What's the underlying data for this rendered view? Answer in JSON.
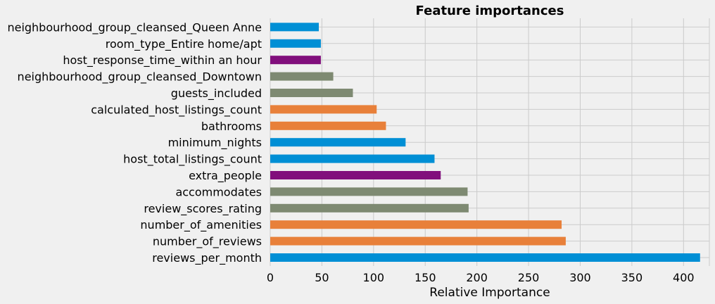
{
  "chart_data": {
    "type": "bar",
    "orientation": "horizontal",
    "title": "Feature importances",
    "xlabel": "Relative Importance",
    "ylabel": "",
    "xlim": [
      0,
      425
    ],
    "xticks": [
      0,
      50,
      100,
      150,
      200,
      250,
      300,
      350,
      400
    ],
    "grid": true,
    "categories": [
      "reviews_per_month",
      "number_of_reviews",
      "number_of_amenities",
      "review_scores_rating",
      "accommodates",
      "extra_people",
      "host_total_listings_count",
      "minimum_nights",
      "bathrooms",
      "calculated_host_listings_count",
      "guests_included",
      "neighbourhood_group_cleansed_Downtown",
      "host_response_time_within an hour",
      "room_type_Entire home/apt",
      "neighbourhood_group_cleansed_Queen Anne"
    ],
    "values": [
      416,
      286,
      282,
      192,
      191,
      165,
      159,
      131,
      112,
      103,
      80,
      61,
      49,
      49,
      47
    ],
    "bar_colors": [
      "#008fd5",
      "#fc4f30",
      "#e5ae38",
      "#6d904f",
      "#8b8b8b",
      "#810f7c",
      "#008fd5",
      "#008fd5",
      "#fc4f30",
      "#fc4f30",
      "#8b8b8b",
      "#8b8b8b",
      "#810f7c",
      "#008fd5",
      "#008fd5"
    ],
    "bar_fills": [
      "#008fd5",
      "#e8803a",
      "#e8803a",
      "#7e8a72",
      "#7e8a72",
      "#810f7c",
      "#008fd5",
      "#008fd5",
      "#e8803a",
      "#e8803a",
      "#7e8a72",
      "#7e8a72",
      "#810f7c",
      "#008fd5",
      "#008fd5"
    ]
  }
}
